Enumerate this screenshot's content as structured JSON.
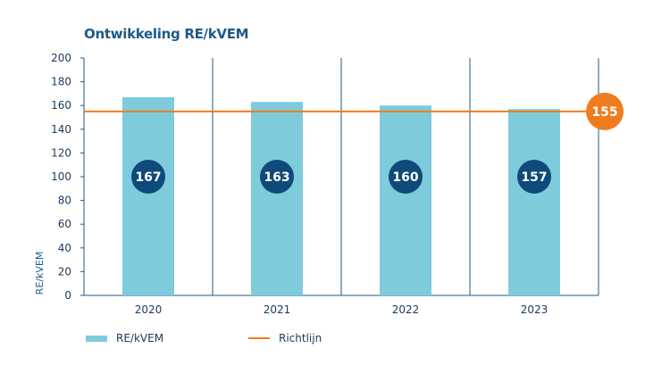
{
  "chart_data": {
    "type": "bar",
    "title": "Ontwikkeling RE/kVEM",
    "ylabel": "RE/kVEM",
    "xlabel": "",
    "categories": [
      "2020",
      "2021",
      "2022",
      "2023"
    ],
    "series": [
      {
        "name": "RE/kVEM",
        "values": [
          167,
          163,
          160,
          157
        ],
        "color": "#7ecbdc",
        "label_color": "#0e4a7a"
      }
    ],
    "reference_line": {
      "name": "Richtlijn",
      "value": 155,
      "color": "#ef7d1f"
    },
    "ylim": [
      0,
      200
    ],
    "yticks": [
      0,
      20,
      40,
      60,
      80,
      100,
      120,
      140,
      160,
      180,
      200
    ],
    "grid": false,
    "legend_position": "bottom-left"
  }
}
